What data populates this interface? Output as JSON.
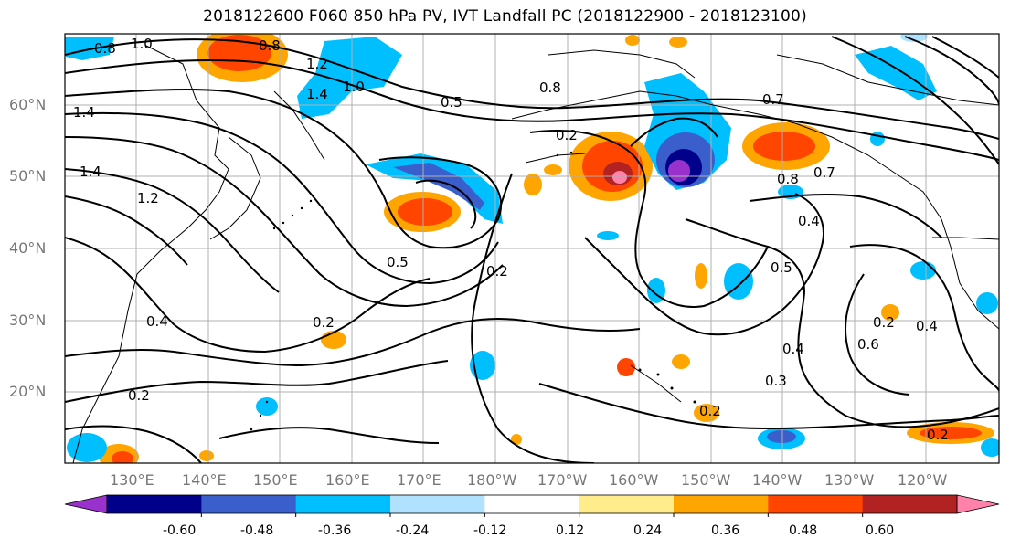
{
  "title": "2018122600 F060 850 hPa PV, IVT Landfall PC (2018122900 - 2018123100)",
  "lat_labels": [
    "60°N",
    "50°N",
    "40°N",
    "30°N",
    "20°N"
  ],
  "lon_labels": [
    "130°E",
    "140°E",
    "150°E",
    "160°E",
    "170°E",
    "180°W",
    "170°W",
    "160°W",
    "150°W",
    "140°W",
    "130°W",
    "120°W"
  ],
  "colorbar": {
    "ticks": [
      "-0.60",
      "-0.48",
      "-0.36",
      "-0.24",
      "-0.12",
      "0.12",
      "0.24",
      "0.36",
      "0.48",
      "0.60"
    ],
    "colors": [
      "#9932cc",
      "#00008b",
      "#3a5fcd",
      "#00bfff",
      "#b0e2ff",
      "#ffffff",
      "#ffec8b",
      "#ffa500",
      "#ff4500",
      "#b22222",
      "#ff82ab"
    ]
  },
  "contour_labels": [
    "0.8",
    "1.0",
    "0.8",
    "1.2",
    "1.4",
    "1.0",
    "0.5",
    "0.8",
    "0.7",
    "1.4",
    "1.4",
    "1.2",
    "0.2",
    "0.8",
    "0.7",
    "0.4",
    "0.5",
    "0.2",
    "0.5",
    "0.4",
    "0.2",
    "0.4",
    "0.2",
    "0.2",
    "0.4",
    "0.3",
    "0.6",
    "0.2",
    "0.2"
  ]
}
